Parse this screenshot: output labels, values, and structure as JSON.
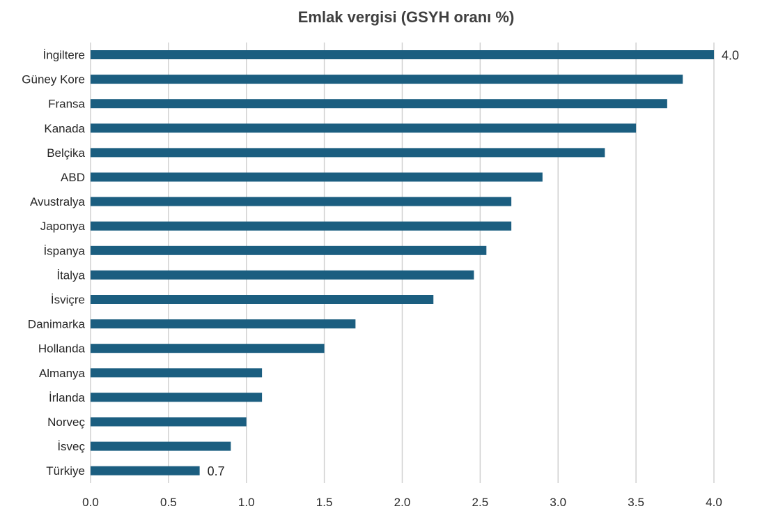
{
  "chart_data": {
    "type": "bar",
    "orientation": "horizontal",
    "title": "Emlak  vergisi (GSYH oranı %)",
    "xlabel": "",
    "ylabel": "",
    "categories": [
      "İngiltere",
      "Güney Kore",
      "Fransa",
      "Kanada",
      "Belçika",
      "ABD",
      "Avustralya",
      "Japonya",
      "İspanya",
      "İtalya",
      "İsviçre",
      "Danimarka",
      "Hollanda",
      "Almanya",
      "İrlanda",
      "Norveç",
      "İsveç",
      "Türkiye"
    ],
    "values": [
      4.0,
      3.8,
      3.7,
      3.5,
      3.3,
      2.9,
      2.7,
      2.7,
      2.54,
      2.46,
      2.2,
      1.7,
      1.5,
      1.1,
      1.1,
      1.0,
      0.9,
      0.7
    ],
    "xlim": [
      0,
      4.0
    ],
    "xticks": [
      "0.0",
      "0.5",
      "1.0",
      "1.5",
      "2.0",
      "2.5",
      "3.0",
      "3.5",
      "4.0"
    ],
    "data_labels": [
      {
        "category": "İngiltere",
        "text": "4.0"
      },
      {
        "category": "Türkiye",
        "text": "0.7"
      }
    ],
    "bar_color": "#1b5e80",
    "grid": "vertical",
    "legend": "none"
  }
}
